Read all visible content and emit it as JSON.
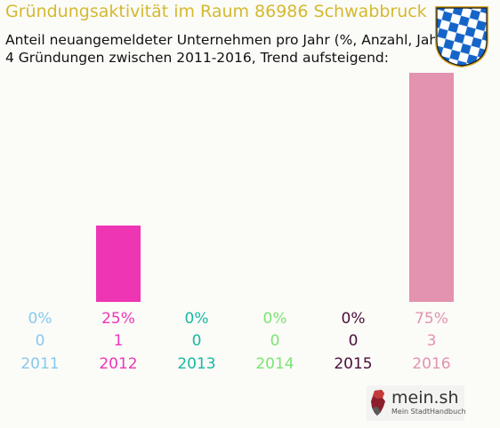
{
  "chart_data": {
    "type": "bar",
    "title": "Gründungsaktivität im Raum 86986 Schwabbruck",
    "subtitle": "Anteil neuangemeldeter Unternehmen pro Jahr (%, Anzahl, Jahr)",
    "summary": "4 Gründungen zwischen 2011-2016, Trend aufsteigend:",
    "categories": [
      "2011",
      "2012",
      "2013",
      "2014",
      "2015",
      "2016"
    ],
    "percent_labels": [
      "0%",
      "25%",
      "0%",
      "0%",
      "0%",
      "75%"
    ],
    "percent": [
      0,
      25,
      0,
      0,
      0,
      75
    ],
    "values": [
      0,
      1,
      0,
      0,
      0,
      3
    ],
    "colors": [
      "#86c9ee",
      "#ee36b4",
      "#17b8a2",
      "#7be573",
      "#4a0f3a",
      "#e392b0"
    ],
    "ylim": [
      0,
      3
    ]
  },
  "logo": {
    "name": "mein.sh",
    "tagline": "Mein StadtHandbuch"
  },
  "crest": {
    "colors": [
      "#1565c9",
      "#ffffff"
    ]
  }
}
